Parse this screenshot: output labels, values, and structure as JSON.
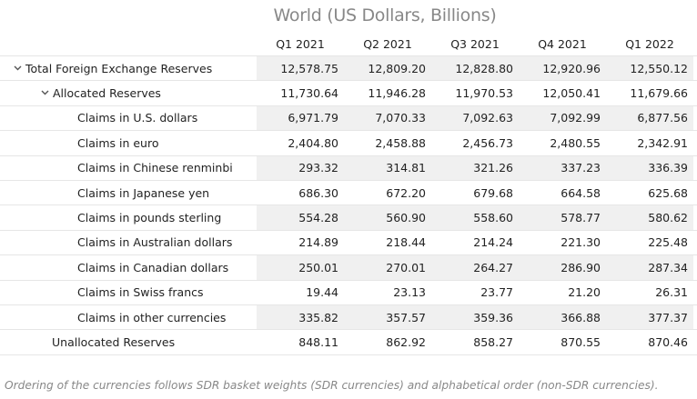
{
  "title": "World (US Dollars, Billions)",
  "columns": [
    "Q1 2021",
    "Q2 2021",
    "Q3 2021",
    "Q4 2021",
    "Q1 2022"
  ],
  "rows": [
    {
      "label": "Total Foreign Exchange Reserves",
      "level": 0,
      "expanded": true,
      "values": [
        "12,578.75",
        "12,809.20",
        "12,828.80",
        "12,920.96",
        "12,550.12"
      ]
    },
    {
      "label": "Allocated Reserves",
      "level": 1,
      "expanded": true,
      "values": [
        "11,730.64",
        "11,946.28",
        "11,970.53",
        "12,050.41",
        "11,679.66"
      ]
    },
    {
      "label": "Claims in U.S. dollars",
      "level": 2,
      "values": [
        "6,971.79",
        "7,070.33",
        "7,092.63",
        "7,092.99",
        "6,877.56"
      ]
    },
    {
      "label": "Claims in euro",
      "level": 2,
      "values": [
        "2,404.80",
        "2,458.88",
        "2,456.73",
        "2,480.55",
        "2,342.91"
      ]
    },
    {
      "label": "Claims in Chinese renminbi",
      "level": 2,
      "values": [
        "293.32",
        "314.81",
        "321.26",
        "337.23",
        "336.39"
      ]
    },
    {
      "label": "Claims in Japanese yen",
      "level": 2,
      "values": [
        "686.30",
        "672.20",
        "679.68",
        "664.58",
        "625.68"
      ]
    },
    {
      "label": "Claims in pounds sterling",
      "level": 2,
      "values": [
        "554.28",
        "560.90",
        "558.60",
        "578.77",
        "580.62"
      ]
    },
    {
      "label": "Claims in Australian dollars",
      "level": 2,
      "values": [
        "214.89",
        "218.44",
        "214.24",
        "221.30",
        "225.48"
      ]
    },
    {
      "label": "Claims in Canadian dollars",
      "level": 2,
      "values": [
        "250.01",
        "270.01",
        "264.27",
        "286.90",
        "287.34"
      ]
    },
    {
      "label": "Claims in Swiss francs",
      "level": 2,
      "values": [
        "19.44",
        "23.13",
        "23.77",
        "21.20",
        "26.31"
      ]
    },
    {
      "label": "Claims in other currencies",
      "level": 2,
      "values": [
        "335.82",
        "357.57",
        "359.36",
        "366.88",
        "377.37"
      ]
    },
    {
      "label": "Unallocated Reserves",
      "level": 1,
      "values": [
        "848.11",
        "862.92",
        "858.27",
        "870.55",
        "870.46"
      ]
    }
  ],
  "footnote": "Ordering of the currencies follows SDR basket weights (SDR currencies) and alphabetical order (non-SDR currencies).",
  "colors": {
    "shade": "#f0f0f0",
    "title": "#888888",
    "border": "#e6e6e6"
  }
}
